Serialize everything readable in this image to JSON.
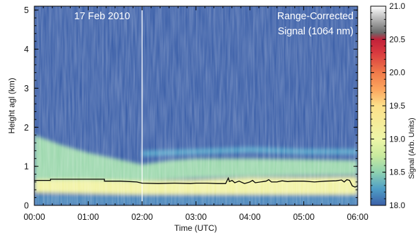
{
  "chart_data": {
    "type": "heatmap",
    "title": "",
    "annotations": {
      "date": "17 Feb 2010",
      "title_line1": "Range-Corrected",
      "title_line2": "Signal (1064 nm)"
    },
    "xlabel": "Time (UTC)",
    "ylabel": "Height agl (km)",
    "colorbar_label": "Signal (Arb. Units)",
    "xlim": [
      0,
      6
    ],
    "ylim": [
      0,
      5.1
    ],
    "x_ticks": [
      {
        "value": 0,
        "label": "00:00"
      },
      {
        "value": 1,
        "label": "01:00"
      },
      {
        "value": 2,
        "label": "02:00"
      },
      {
        "value": 3,
        "label": "03:00"
      },
      {
        "value": 4,
        "label": "04:00"
      },
      {
        "value": 5,
        "label": "05:00"
      },
      {
        "value": 6,
        "label": "06:00"
      }
    ],
    "y_ticks": [
      {
        "value": 0,
        "label": "0"
      },
      {
        "value": 1,
        "label": "1"
      },
      {
        "value": 2,
        "label": "2"
      },
      {
        "value": 3,
        "label": "3"
      },
      {
        "value": 4,
        "label": "4"
      },
      {
        "value": 5,
        "label": "5"
      }
    ],
    "colorbar": {
      "range": [
        18.0,
        21.0
      ],
      "ticks": [
        {
          "value": 18.0,
          "label": "18.0"
        },
        {
          "value": 18.5,
          "label": "18.5"
        },
        {
          "value": 19.0,
          "label": "19.0"
        },
        {
          "value": 19.5,
          "label": "19.5"
        },
        {
          "value": 20.0,
          "label": "20.0"
        },
        {
          "value": 20.5,
          "label": "20.5"
        },
        {
          "value": 21.0,
          "label": "21.0"
        }
      ],
      "stops": [
        {
          "value": 18.0,
          "color": "#3b5fa8"
        },
        {
          "value": 18.25,
          "color": "#4f9ec6"
        },
        {
          "value": 18.5,
          "color": "#8fd2b0"
        },
        {
          "value": 18.75,
          "color": "#c9ea9e"
        },
        {
          "value": 19.0,
          "color": "#eef6a8"
        },
        {
          "value": 19.5,
          "color": "#fde08a"
        },
        {
          "value": 19.75,
          "color": "#fca55e"
        },
        {
          "value": 20.0,
          "color": "#f07a4a"
        },
        {
          "value": 20.3,
          "color": "#d8393f"
        },
        {
          "value": 20.5,
          "color": "#c2213a"
        },
        {
          "value": 20.6,
          "color": "#6a6a6a"
        },
        {
          "value": 21.0,
          "color": "#ffffff"
        }
      ]
    },
    "marker_line": {
      "x": 2.0,
      "color": "#ffffff"
    },
    "series": [
      {
        "kind": "boundary-layer-height",
        "color": "#000000",
        "x": [
          0.0,
          0.3,
          0.3,
          0.8,
          1.3,
          1.3,
          1.6,
          1.9,
          2.0,
          2.3,
          2.6,
          2.9,
          3.0,
          3.2,
          3.4,
          3.55,
          3.6,
          3.62,
          3.67,
          3.72,
          3.8,
          3.9,
          4.0,
          4.05,
          4.1,
          4.3,
          4.35,
          4.4,
          4.5,
          4.6,
          4.7,
          4.8,
          5.0,
          5.2,
          5.4,
          5.6,
          5.7,
          5.75,
          5.8,
          5.85,
          5.9,
          5.95,
          6.0
        ],
        "y": [
          0.64,
          0.64,
          0.67,
          0.67,
          0.67,
          0.62,
          0.62,
          0.6,
          0.57,
          0.56,
          0.57,
          0.56,
          0.57,
          0.57,
          0.56,
          0.56,
          0.7,
          0.61,
          0.64,
          0.58,
          0.62,
          0.56,
          0.6,
          0.64,
          0.58,
          0.62,
          0.66,
          0.6,
          0.6,
          0.63,
          0.61,
          0.62,
          0.62,
          0.6,
          0.62,
          0.63,
          0.65,
          0.6,
          0.66,
          0.64,
          0.5,
          0.47,
          0.5
        ]
      }
    ],
    "field": {
      "background": 18.0,
      "lower_layer": {
        "x": [
          0,
          1,
          2,
          3,
          4,
          5,
          6
        ],
        "base": [
          0.32,
          0.3,
          0.28,
          0.28,
          0.27,
          0.26,
          0.28
        ],
        "top": [
          0.66,
          0.66,
          0.62,
          0.66,
          0.72,
          0.72,
          0.74
        ],
        "value": 19.1
      },
      "aerosol_layer": {
        "x": [
          0,
          0.5,
          1,
          1.5,
          2,
          2.5,
          3,
          4,
          5,
          6
        ],
        "base": [
          0.66,
          0.66,
          0.66,
          0.64,
          0.62,
          0.66,
          0.7,
          0.74,
          0.76,
          0.78
        ],
        "top": [
          1.8,
          1.55,
          1.35,
          1.2,
          1.05,
          1.15,
          1.2,
          1.2,
          1.18,
          1.15
        ],
        "value": 18.55
      },
      "upper_band": {
        "x": [
          2,
          3,
          4,
          5,
          6
        ],
        "base": [
          1.25,
          1.3,
          1.35,
          1.3,
          1.3
        ],
        "top": [
          1.4,
          1.45,
          1.5,
          1.45,
          1.45
        ],
        "value": 18.25
      },
      "near_ground": {
        "base": 0.0,
        "top": 0.28,
        "value": 18.15
      }
    }
  }
}
